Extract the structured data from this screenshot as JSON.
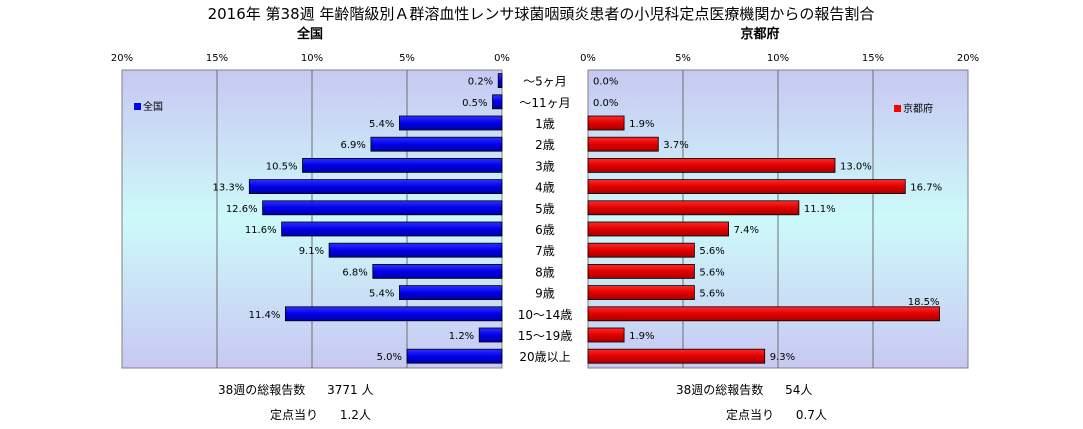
{
  "chart_data": {
    "type": "bar",
    "title": "2016年 第38週 年齢階級別Ａ群溶血性レンサ球菌咽頭炎患者の小児科定点医療機関からの報告割合",
    "categories": [
      "～5ヶ月",
      "～11ヶ月",
      "1歳",
      "2歳",
      "3歳",
      "4歳",
      "5歳",
      "6歳",
      "7歳",
      "8歳",
      "9歳",
      "10～14歳",
      "15～19歳",
      "20歳以上"
    ],
    "xlim": [
      0,
      20
    ],
    "ticks": [
      0,
      5,
      10,
      15,
      20
    ],
    "tick_labels": [
      "0%",
      "5%",
      "10%",
      "15%",
      "20%"
    ],
    "grid": true,
    "series": [
      {
        "name": "全国",
        "side": "left",
        "legend_position": "top-left",
        "color": "#0000ff",
        "values": [
          0.2,
          0.5,
          5.4,
          6.9,
          10.5,
          13.3,
          12.6,
          11.6,
          9.1,
          6.8,
          5.4,
          11.4,
          1.2,
          5.0
        ],
        "labels": [
          "0.2%",
          "0.5%",
          "5.4%",
          "6.9%",
          "10.5%",
          "13.3%",
          "12.6%",
          "11.6%",
          "9.1%",
          "6.8%",
          "5.4%",
          "11.4%",
          "1.2%",
          "5.0%"
        ]
      },
      {
        "name": "京都府",
        "side": "right",
        "legend_position": "top-right",
        "color": "#ff0000",
        "values": [
          0.0,
          0.0,
          1.9,
          3.7,
          13.0,
          16.7,
          11.1,
          7.4,
          5.6,
          5.6,
          5.6,
          18.5,
          1.9,
          9.3
        ],
        "labels": [
          "0.0%",
          "0.0%",
          "1.9%",
          "3.7%",
          "13.0%",
          "16.7%",
          "11.1%",
          "7.4%",
          "5.6%",
          "5.6%",
          "5.6%",
          "18.5%",
          "1.9%",
          "9.3%"
        ]
      }
    ]
  },
  "panels": {
    "left_title": "全国",
    "right_title": "京都府"
  },
  "footer": {
    "national_total_label": "38週の総報告数",
    "national_total_value": "3771 人",
    "national_per_label": "定点当り",
    "national_per_value": "1.2人",
    "kyoto_total_label": "38週の総報告数",
    "kyoto_total_value": "54人",
    "kyoto_per_label": "定点当り",
    "kyoto_per_value": "0.7人"
  }
}
